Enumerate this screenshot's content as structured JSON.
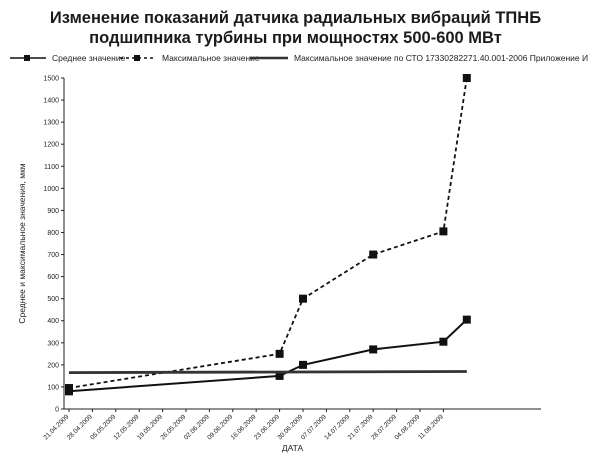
{
  "chart_data": {
    "type": "line",
    "title": "Изменение показаний датчика радиальных вибраций ТПНБ подшипника турбины при мощностях 500-600 МВт",
    "xlabel": "ДАТА",
    "ylabel": "Среднее и максимальное значения, мкм",
    "ylim": [
      0,
      1500
    ],
    "yticks": [
      0,
      100,
      200,
      300,
      400,
      500,
      600,
      700,
      800,
      900,
      1000,
      1100,
      1200,
      1300,
      1400,
      1500
    ],
    "x_tick_labels": [
      "21.04.2009",
      "28.04.2009",
      "05.05.2009",
      "12.05.2009",
      "19.05.2009",
      "26.05.2009",
      "02.06.2009",
      "09.06.2009",
      "16.06.2009",
      "23.06.2009",
      "30.06.2009",
      "07.07.2009",
      "14.07.2009",
      "21.07.2009",
      "28.07.2009",
      "04.08.2009",
      "11.08.2009"
    ],
    "grid": false,
    "legend_position": "top",
    "series": [
      {
        "name": "Среднее значение",
        "style": "solid-markers",
        "color": "#111111",
        "points": [
          {
            "x": "21.04.2009",
            "y": 80
          },
          {
            "x": "23.06.2009",
            "y": 150
          },
          {
            "x": "30.06.2009",
            "y": 200
          },
          {
            "x": "21.07.2009",
            "y": 270
          },
          {
            "x": "11.08.2009",
            "y": 305
          },
          {
            "x": "18.08.2009",
            "y": 405
          }
        ]
      },
      {
        "name": "Максимальное значение",
        "style": "dashed-markers",
        "color": "#111111",
        "points": [
          {
            "x": "21.04.2009",
            "y": 95
          },
          {
            "x": "23.06.2009",
            "y": 250
          },
          {
            "x": "30.06.2009",
            "y": 500
          },
          {
            "x": "21.07.2009",
            "y": 700
          },
          {
            "x": "11.08.2009",
            "y": 805
          },
          {
            "x": "18.08.2009",
            "y": 1500
          }
        ]
      },
      {
        "name": "Максимальное значение по СТО 17330282271.40.001-2006 Приложение И",
        "style": "thick-line",
        "color": "#333333",
        "points": [
          {
            "x": "21.04.2009",
            "y": 165
          },
          {
            "x": "18.08.2009",
            "y": 170
          }
        ]
      }
    ]
  }
}
